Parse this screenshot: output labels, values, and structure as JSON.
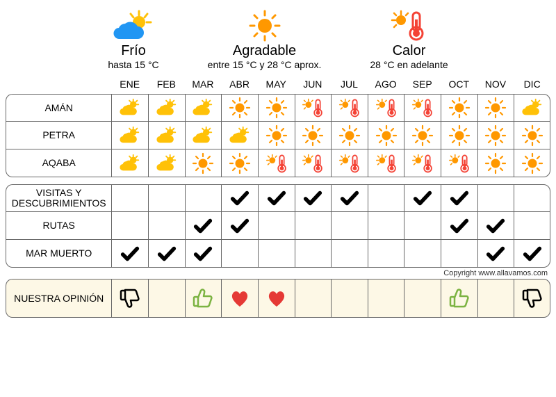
{
  "colors": {
    "cold": "#2196f3",
    "sun_cold": "#ffc107",
    "sun_nice": "#ff9800",
    "hot": "#f44336",
    "check": "#000000",
    "heart": "#e53935",
    "thumb_up": "#7cb342",
    "thumb_down": "#000000",
    "border": "#666666",
    "opinion_bg": "#fdf8e6"
  },
  "legend": {
    "cold": {
      "title": "Frío",
      "sub": "hasta 15 °C"
    },
    "nice": {
      "title": "Agradable",
      "sub": "entre 15 °C y 28 °C aprox."
    },
    "hot": {
      "title": "Calor",
      "sub": "28 °C en adelante"
    }
  },
  "months": [
    "ENE",
    "FEB",
    "MAR",
    "ABR",
    "MAY",
    "JUN",
    "JUL",
    "AGO",
    "SEP",
    "OCT",
    "NOV",
    "DIC"
  ],
  "weather_rows": [
    {
      "label": "AMÁN",
      "cells": [
        "cold",
        "cold",
        "cold",
        "nice",
        "nice",
        "hot",
        "hot",
        "hot",
        "hot",
        "nice",
        "nice",
        "cold"
      ]
    },
    {
      "label": "PETRA",
      "cells": [
        "cold",
        "cold",
        "cold",
        "cold",
        "nice",
        "nice",
        "nice",
        "nice",
        "nice",
        "nice",
        "nice",
        "nice"
      ]
    },
    {
      "label": "AQABA",
      "cells": [
        "cold",
        "cold",
        "nice",
        "nice",
        "hot",
        "hot",
        "hot",
        "hot",
        "hot",
        "hot",
        "nice",
        "nice"
      ]
    }
  ],
  "activity_rows": [
    {
      "label": "VISITAS Y DESCUBRIMIENTOS",
      "cells": [
        "",
        "",
        "",
        "check",
        "check",
        "check",
        "check",
        "",
        "check",
        "check",
        "",
        ""
      ]
    },
    {
      "label": "RUTAS",
      "cells": [
        "",
        "",
        "check",
        "check",
        "",
        "",
        "",
        "",
        "",
        "check",
        "check",
        ""
      ]
    },
    {
      "label": "MAR MUERTO",
      "cells": [
        "check",
        "check",
        "check",
        "",
        "",
        "",
        "",
        "",
        "",
        "",
        "check",
        "check"
      ]
    }
  ],
  "opinion": {
    "label": "NUESTRA OPINIÓN",
    "cells": [
      "thumb_down",
      "",
      "thumb_up",
      "heart",
      "heart",
      "",
      "",
      "",
      "",
      "thumb_up",
      "",
      "thumb_down"
    ]
  },
  "copyright": "Copyright www.allavamos.com"
}
